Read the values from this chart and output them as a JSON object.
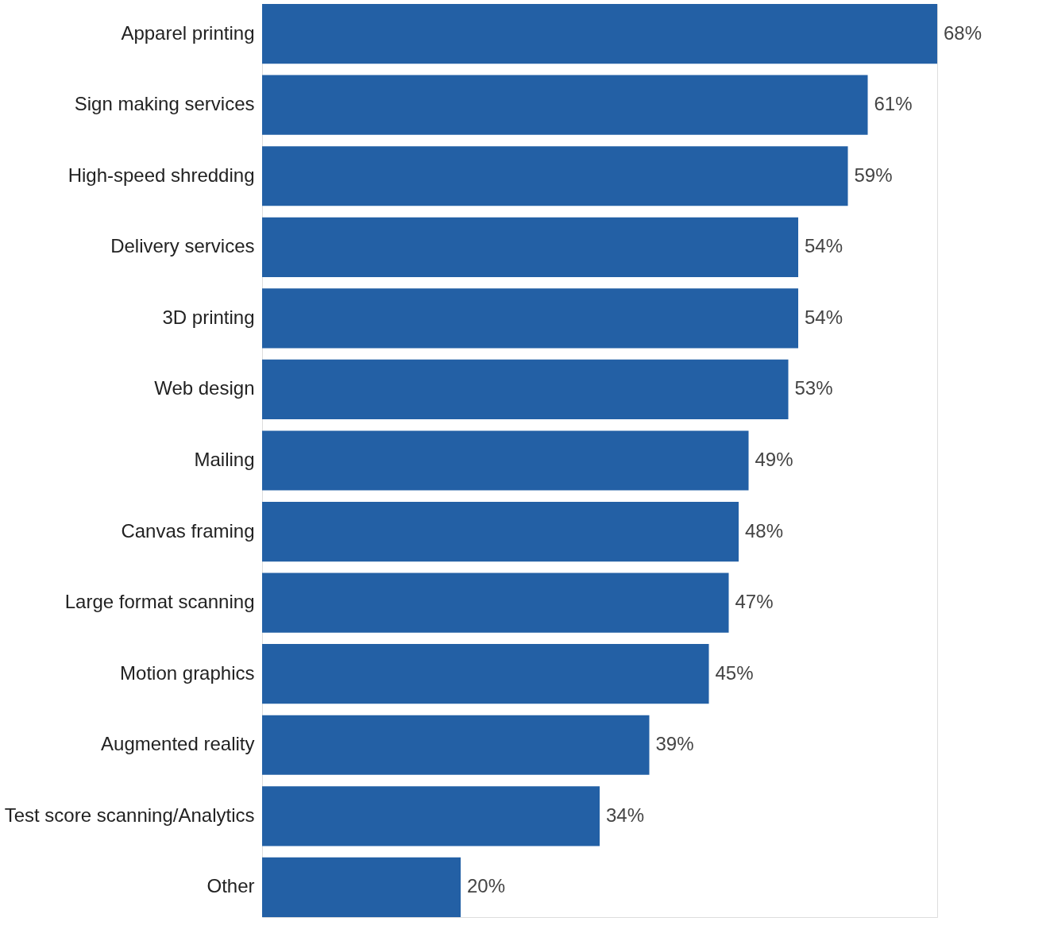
{
  "chart_data": {
    "type": "bar",
    "orientation": "horizontal",
    "categories": [
      "Apparel printing",
      "Sign making services",
      "High-speed shredding",
      "Delivery services",
      "3D printing",
      "Web design",
      "Mailing",
      "Canvas framing",
      "Large format scanning",
      "Motion graphics",
      "Augmented reality",
      "Test score scanning/Analytics",
      "Other"
    ],
    "values": [
      68,
      61,
      59,
      54,
      54,
      53,
      49,
      48,
      47,
      45,
      39,
      34,
      20
    ],
    "value_labels": [
      "68%",
      "61%",
      "59%",
      "54%",
      "54%",
      "53%",
      "49%",
      "48%",
      "47%",
      "45%",
      "39%",
      "34%",
      "20%"
    ],
    "color": "#2360a5",
    "grid": false,
    "tick_labels": "y"
  }
}
